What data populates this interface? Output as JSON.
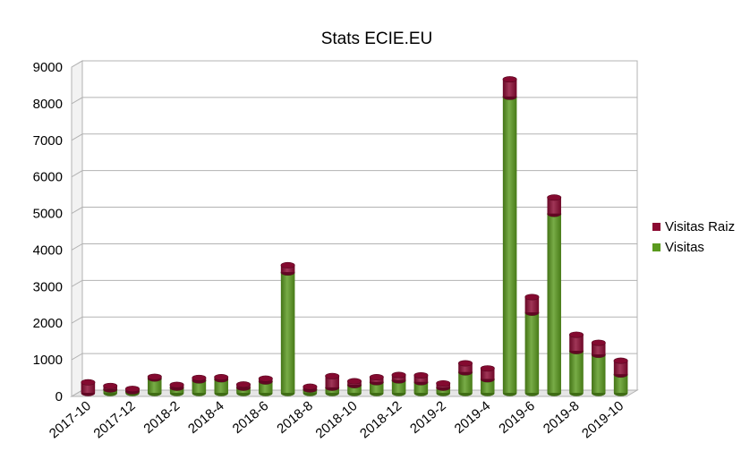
{
  "chart_data": {
    "type": "bar",
    "stacked": true,
    "three_d": true,
    "title": "Stats ECIE.EU",
    "xlabel": "",
    "ylabel": "",
    "ylim": [
      0,
      9000
    ],
    "ytick_step": 1000,
    "yticks": [
      "0",
      "1000",
      "2000",
      "3000",
      "4000",
      "5000",
      "6000",
      "7000",
      "8000",
      "9000"
    ],
    "grid": true,
    "legend_position": "right",
    "categories": [
      "2017-10",
      "2017-11",
      "2017-12",
      "2018-1",
      "2018-2",
      "2018-3",
      "2018-4",
      "2018-5",
      "2018-6",
      "2018-7",
      "2018-8",
      "2018-9",
      "2018-10",
      "2018-11",
      "2018-12",
      "2019-1",
      "2019-2",
      "2019-3",
      "2019-4",
      "2019-5",
      "2019-6",
      "2019-7",
      "2019-8",
      "2019-9",
      "2019-10"
    ],
    "xtick_labels": [
      "2017-10",
      "2017-12",
      "2018-2",
      "2018-4",
      "2018-6",
      "2018-8",
      "2018-10",
      "2018-12",
      "2019-2",
      "2019-4",
      "2019-6",
      "2019-8",
      "2019-10"
    ],
    "series": [
      {
        "name": "Visitas",
        "color": "#5a9a1e",
        "values": [
          0,
          100,
          50,
          400,
          150,
          350,
          380,
          150,
          320,
          3300,
          100,
          150,
          220,
          300,
          350,
          300,
          150,
          570,
          380,
          8100,
          2200,
          4900,
          1150,
          1050,
          510
        ]
      },
      {
        "name": "Visitas Raiz",
        "color": "#8b0a32",
        "values": [
          300,
          100,
          70,
          50,
          80,
          70,
          60,
          90,
          80,
          200,
          80,
          320,
          110,
          140,
          150,
          190,
          120,
          250,
          300,
          480,
          430,
          450,
          450,
          330,
          380
        ]
      }
    ]
  }
}
